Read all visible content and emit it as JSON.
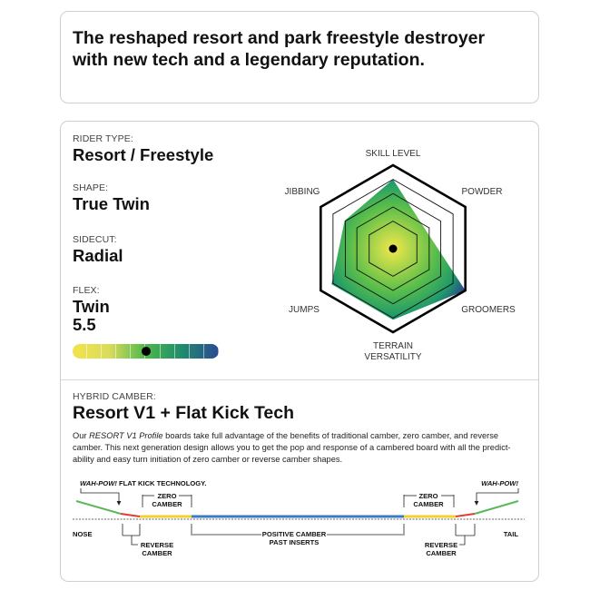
{
  "tagline": {
    "line1": "The reshaped resort and park freestyle destroyer",
    "line2": "with new tech and a legendary reputation."
  },
  "specs": {
    "rider_type": {
      "label": "RIDER TYPE:",
      "value": "Resort / Freestyle"
    },
    "shape": {
      "label": "SHAPE:",
      "value": "True Twin"
    },
    "sidecut": {
      "label": "SIDECUT:",
      "value": "Radial"
    },
    "flex": {
      "label": "FLEX:",
      "value_line1": "Twin",
      "value_line2": "5.5",
      "rating": 5.5,
      "scale": [
        1,
        10
      ],
      "gradient_colors": [
        "#f2e34a",
        "#d9dc5c",
        "#4cb84a",
        "#1f8a6e",
        "#2b4a93"
      ]
    }
  },
  "radar": {
    "axes": [
      {
        "label": "SKILL LEVEL",
        "value": 83
      },
      {
        "label": "POWDER",
        "value": 45
      },
      {
        "label": "GROOMERS",
        "value": 100
      },
      {
        "label": "TERRAIN",
        "label2": "VERSATILITY",
        "value": 85
      },
      {
        "label": "JUMPS",
        "value": 85
      },
      {
        "label": "JIBBING",
        "value": 67
      }
    ],
    "max": 100,
    "fill_colors": [
      "#f3e84a",
      "#5cbf4a",
      "#1f9a6a",
      "#2c3f8f"
    ]
  },
  "camber": {
    "label": "HYBRID CAMBER:",
    "title": "Resort V1 + Flat Kick Tech",
    "desc_intro": "Our ",
    "desc_italic": "RESORT V1 Profile",
    "desc_line1_rest": " boards take full advantage of the benefits of traditional camber, zero camber, and reverse",
    "desc_line2": "camber. This next generation design allows you to get the pop and response of a cambered board with all the predict-",
    "desc_line3": "ability and easy turn initiation of zero camber or reverse camber shapes.",
    "diagram": {
      "wahpow": "WAH-POW!",
      "flat_kick": " FLAT KICK TECHNOLOGY.",
      "wahpow_right": "WAH-POW!",
      "zero": "ZERO",
      "camber_word": "CAMBER",
      "reverse": "REVERSE",
      "positive": "POSITIVE CAMBER",
      "past_inserts": "PAST INSERTS",
      "nose": "NOSE",
      "tail": "TAIL",
      "colors": {
        "kick": "#5cb85c",
        "reverse": "#e03c31",
        "zero": "#f2d22e",
        "positive": "#3a7cc4"
      }
    }
  }
}
